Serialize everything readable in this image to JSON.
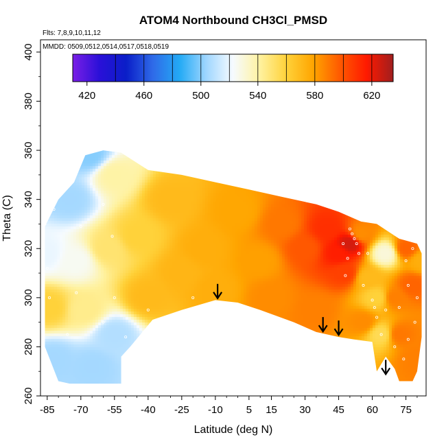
{
  "chart_data": {
    "type": "heatmap",
    "title": "ATOM4 Northbound CH3Cl_PMSD",
    "flights_note": "Flts: 7,8,9,10,11,12",
    "dates_note": "MMDD: 0509,0512,0514,0517,0518,0519",
    "xlabel": "Latitude (deg N)",
    "ylabel": "Theta (C)",
    "xlim": [
      -88,
      84
    ],
    "ylim": [
      260,
      405
    ],
    "x_ticks": [
      -85,
      -70,
      -55,
      -40,
      -25,
      -10,
      5,
      15,
      30,
      45,
      60,
      75
    ],
    "x_tick_labels": [
      "-85",
      "-70",
      "-55",
      "-40",
      "-25",
      "-10",
      "5",
      "15",
      "30",
      "45",
      "60",
      "75"
    ],
    "y_ticks": [
      260,
      280,
      300,
      320,
      340,
      360,
      380,
      400
    ],
    "y_tick_labels": [
      "260",
      "280",
      "300",
      "320",
      "340",
      "360",
      "380",
      "400"
    ],
    "colorbar": {
      "min": 410,
      "max": 635,
      "ticks": [
        420,
        460,
        500,
        540,
        580,
        620
      ],
      "tick_labels": [
        "420",
        "460",
        "500",
        "540",
        "580",
        "620"
      ],
      "colors": [
        "#7a1fe6",
        "#2a10d8",
        "#0a1ec8",
        "#2f6ae8",
        "#23aaf5",
        "#9fd6ff",
        "#f6fbff",
        "#fff2a0",
        "#ffd23a",
        "#ffa500",
        "#ff5a00",
        "#ff1a00",
        "#a01e1e"
      ]
    },
    "arrows_at_latitude": [
      -9,
      38,
      45,
      66
    ],
    "data_extent": {
      "top_boundary": [
        [
          -86,
          329
        ],
        [
          -80,
          340
        ],
        [
          -73,
          347
        ],
        [
          -68,
          358
        ],
        [
          -60,
          360
        ],
        [
          -52,
          359
        ],
        [
          -40,
          352
        ],
        [
          -25,
          350
        ],
        [
          -10,
          347
        ],
        [
          5,
          344
        ],
        [
          20,
          341
        ],
        [
          35,
          338
        ],
        [
          45,
          335
        ],
        [
          55,
          331
        ],
        [
          62,
          330
        ],
        [
          72,
          324
        ],
        [
          80,
          322
        ],
        [
          82,
          318
        ]
      ],
      "bottom_boundary": [
        [
          -86,
          280
        ],
        [
          -80,
          266
        ],
        [
          -75,
          265
        ],
        [
          -55,
          265
        ],
        [
          -52,
          265
        ],
        [
          -52,
          276
        ],
        [
          -48,
          280
        ],
        [
          -38,
          291
        ],
        [
          -25,
          295
        ],
        [
          -10,
          299
        ],
        [
          0,
          298
        ],
        [
          10,
          295
        ],
        [
          25,
          290
        ],
        [
          35,
          286
        ],
        [
          45,
          284
        ],
        [
          52,
          283
        ],
        [
          60,
          282
        ],
        [
          62,
          270
        ],
        [
          66,
          276
        ],
        [
          70,
          271
        ],
        [
          72,
          266
        ],
        [
          78,
          266
        ],
        [
          80,
          270
        ],
        [
          82,
          284
        ]
      ]
    },
    "field_points": [
      {
        "lat": -86,
        "theta": 318,
        "value": 520
      },
      {
        "lat": -84,
        "theta": 296,
        "value": 560
      },
      {
        "lat": -82,
        "theta": 275,
        "value": 505
      },
      {
        "lat": -75,
        "theta": 340,
        "value": 505
      },
      {
        "lat": -72,
        "theta": 315,
        "value": 525
      },
      {
        "lat": -68,
        "theta": 295,
        "value": 545
      },
      {
        "lat": -66,
        "theta": 358,
        "value": 500
      },
      {
        "lat": -65,
        "theta": 272,
        "value": 505
      },
      {
        "lat": -55,
        "theta": 285,
        "value": 508
      },
      {
        "lat": -55,
        "theta": 350,
        "value": 540
      },
      {
        "lat": -58,
        "theta": 320,
        "value": 550
      },
      {
        "lat": -45,
        "theta": 325,
        "value": 560
      },
      {
        "lat": -40,
        "theta": 300,
        "value": 570
      },
      {
        "lat": -30,
        "theta": 340,
        "value": 570
      },
      {
        "lat": -25,
        "theta": 310,
        "value": 572
      },
      {
        "lat": -15,
        "theta": 320,
        "value": 575
      },
      {
        "lat": -10,
        "theta": 303,
        "value": 575
      },
      {
        "lat": 0,
        "theta": 335,
        "value": 578
      },
      {
        "lat": 10,
        "theta": 315,
        "value": 580
      },
      {
        "lat": 15,
        "theta": 300,
        "value": 585
      },
      {
        "lat": 20,
        "theta": 330,
        "value": 590
      },
      {
        "lat": 30,
        "theta": 320,
        "value": 598
      },
      {
        "lat": 35,
        "theta": 295,
        "value": 588
      },
      {
        "lat": 40,
        "theta": 328,
        "value": 610
      },
      {
        "lat": 45,
        "theta": 318,
        "value": 615
      },
      {
        "lat": 48,
        "theta": 310,
        "value": 605
      },
      {
        "lat": 50,
        "theta": 322,
        "value": 625
      },
      {
        "lat": 55,
        "theta": 326,
        "value": 585
      },
      {
        "lat": 58,
        "theta": 308,
        "value": 570
      },
      {
        "lat": 56,
        "theta": 290,
        "value": 585
      },
      {
        "lat": 62,
        "theta": 300,
        "value": 560
      },
      {
        "lat": 64,
        "theta": 285,
        "value": 555
      },
      {
        "lat": 66,
        "theta": 318,
        "value": 530
      },
      {
        "lat": 70,
        "theta": 300,
        "value": 588
      },
      {
        "lat": 72,
        "theta": 285,
        "value": 590
      },
      {
        "lat": 75,
        "theta": 320,
        "value": 595
      },
      {
        "lat": 78,
        "theta": 305,
        "value": 595
      },
      {
        "lat": 80,
        "theta": 275,
        "value": 588
      },
      {
        "lat": 82,
        "theta": 315,
        "value": 575
      }
    ],
    "sample_points": [
      [
        -86,
        330
      ],
      [
        -82,
        336
      ],
      [
        -78,
        344
      ],
      [
        -67,
        359
      ],
      [
        -70,
        329
      ],
      [
        -60,
        338
      ],
      [
        -84,
        300
      ],
      [
        -56,
        325
      ],
      [
        -55,
        300
      ],
      [
        -50,
        284
      ],
      [
        -40,
        295
      ],
      [
        -20,
        300
      ],
      [
        50,
        328
      ],
      [
        51,
        326
      ],
      [
        52,
        324
      ],
      [
        53,
        322
      ],
      [
        54,
        318
      ],
      [
        49,
        316
      ],
      [
        48,
        309
      ],
      [
        56,
        305
      ],
      [
        60,
        299
      ],
      [
        61,
        296
      ],
      [
        62,
        292
      ],
      [
        64,
        285
      ],
      [
        66,
        295
      ],
      [
        70,
        280
      ],
      [
        72,
        296
      ],
      [
        75,
        315
      ],
      [
        76,
        305
      ],
      [
        79,
        290
      ],
      [
        80,
        300
      ],
      [
        78,
        320
      ],
      [
        76,
        283
      ],
      [
        74,
        275
      ],
      [
        58,
        318
      ],
      [
        47,
        322
      ],
      [
        -72,
        302
      ],
      [
        -60,
        290
      ],
      [
        -85,
        312
      ],
      [
        -76,
        285
      ]
    ]
  }
}
